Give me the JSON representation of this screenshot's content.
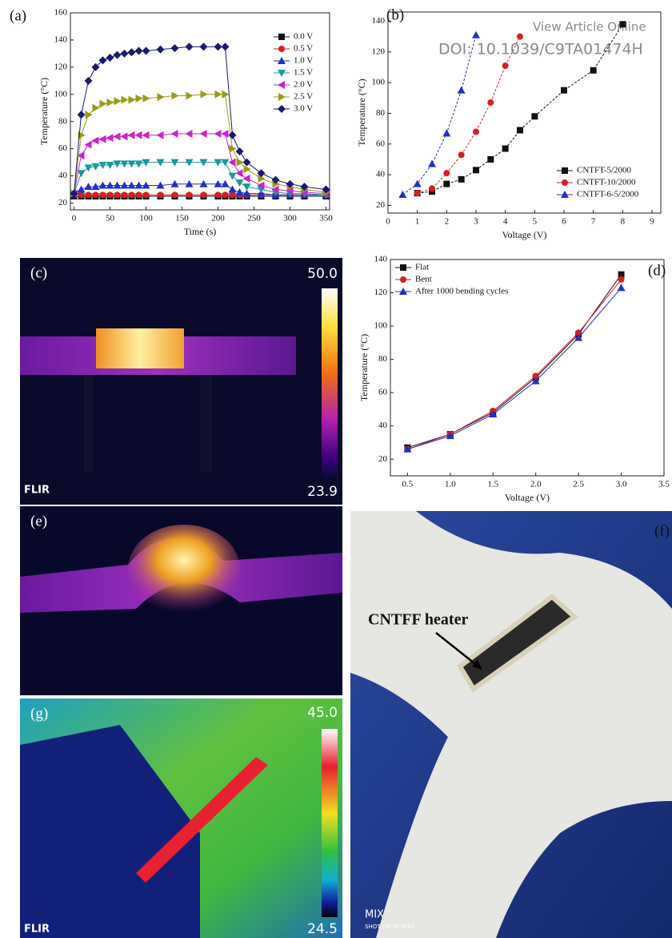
{
  "header": {
    "link": "View Article Online",
    "doi": "DOI: 10.1039/C9TA01474H"
  },
  "chart_data": [
    {
      "type": "line",
      "label": "(a)",
      "x_label": "Time (s)",
      "y_label": "Temperature (°C)",
      "x": [
        0,
        10,
        20,
        30,
        40,
        50,
        60,
        70,
        80,
        90,
        100,
        120,
        140,
        160,
        180,
        200,
        210,
        220,
        230,
        240,
        260,
        280,
        300,
        320,
        350
      ],
      "xlim": [
        -5,
        355
      ],
      "xticks": [
        0,
        50,
        100,
        150,
        200,
        250,
        300,
        350
      ],
      "ylim": [
        15,
        160
      ],
      "yticks": [
        20,
        40,
        60,
        80,
        100,
        120,
        140,
        160
      ],
      "legend": "upper right",
      "series": [
        {
          "name": "0.0 V",
          "color": "#111111",
          "marker": "square",
          "values": [
            25,
            25,
            25,
            25,
            25,
            25,
            25,
            25,
            25,
            25,
            25,
            25,
            25,
            25,
            25,
            25,
            25,
            25,
            25,
            25,
            25,
            25,
            25,
            25,
            25
          ]
        },
        {
          "name": "0.5 V",
          "color": "#d62020",
          "marker": "circle",
          "values": [
            27,
            26,
            26,
            26,
            26,
            26,
            26,
            26,
            26,
            26,
            26,
            26,
            26,
            26,
            26,
            26,
            26,
            26,
            26,
            26,
            26,
            26,
            26,
            26,
            26
          ]
        },
        {
          "name": "1.0 V",
          "color": "#2030c8",
          "marker": "triangle",
          "values": [
            27,
            30,
            32,
            32,
            33,
            33,
            33,
            33,
            33,
            33,
            33,
            33,
            34,
            34,
            34,
            34,
            34,
            30,
            28,
            27,
            27,
            26,
            26,
            26,
            26
          ]
        },
        {
          "name": "1.5 V",
          "color": "#1a9a9a",
          "marker": "triangle-down",
          "values": [
            27,
            42,
            46,
            47,
            48,
            48,
            49,
            49,
            49,
            49,
            50,
            50,
            50,
            50,
            50,
            50,
            50,
            40,
            35,
            32,
            30,
            28,
            27,
            27,
            26
          ]
        },
        {
          "name": "2.0 V",
          "color": "#d020d0",
          "marker": "triangle-left",
          "values": [
            27,
            55,
            63,
            66,
            67,
            68,
            69,
            69,
            70,
            70,
            70,
            70,
            71,
            71,
            71,
            71,
            71,
            50,
            42,
            38,
            33,
            30,
            29,
            28,
            27
          ]
        },
        {
          "name": "2.5 V",
          "color": "#9a9a18",
          "marker": "triangle-right",
          "values": [
            27,
            70,
            85,
            90,
            93,
            94,
            95,
            96,
            96,
            97,
            97,
            98,
            99,
            99,
            100,
            100,
            100,
            60,
            50,
            45,
            38,
            34,
            32,
            30,
            28
          ]
        },
        {
          "name": "3.0 V",
          "color": "#1a1a70",
          "marker": "diamond",
          "values": [
            27,
            85,
            110,
            120,
            125,
            127,
            129,
            130,
            131,
            132,
            132,
            133,
            134,
            135,
            135,
            135,
            135,
            70,
            58,
            50,
            42,
            37,
            34,
            32,
            30
          ]
        }
      ]
    },
    {
      "type": "line",
      "label": "(b)",
      "x_label": "Voltage (V)",
      "y_label": "Temperature (°C)",
      "xlim": [
        0,
        9.3
      ],
      "xticks": [
        0,
        1,
        2,
        3,
        4,
        5,
        6,
        7,
        8,
        9
      ],
      "ylim": [
        15,
        146
      ],
      "yticks": [
        20,
        40,
        60,
        80,
        100,
        120,
        140
      ],
      "legend": "lower right",
      "series": [
        {
          "name": "CNTFT-5/2000",
          "color": "#111111",
          "marker": "square",
          "dash": true,
          "x": [
            1,
            1.5,
            2,
            2.5,
            3,
            3.5,
            4,
            4.5,
            5,
            6,
            7,
            8
          ],
          "values": [
            28,
            29,
            34,
            37,
            43,
            50,
            57,
            69,
            78,
            95,
            108,
            138
          ]
        },
        {
          "name": "CNTFT-10/2000",
          "color": "#d62020",
          "marker": "circle",
          "dash": true,
          "x": [
            1,
            1.5,
            2,
            2.5,
            3,
            3.5,
            4,
            4.5
          ],
          "values": [
            28,
            31,
            41,
            53,
            68,
            87,
            111,
            130
          ]
        },
        {
          "name": "CNTFT-6-5/2000",
          "color": "#2030c8",
          "marker": "triangle",
          "dash": true,
          "x": [
            0.5,
            1,
            1.5,
            2,
            2.5,
            3
          ],
          "values": [
            27,
            34,
            47,
            67,
            95,
            131
          ]
        }
      ]
    },
    {
      "type": "line",
      "label": "(d)",
      "x_label": "Voltage (V)",
      "y_label": "Temperature (°C)",
      "x": [
        0.5,
        1,
        1.5,
        2,
        2.5,
        3
      ],
      "xlim": [
        0.3,
        3.5
      ],
      "xticks": [
        {
          "value": 0.5,
          "label": "0.5"
        },
        {
          "value": 1,
          "label": "1.0"
        },
        {
          "value": 1.5,
          "label": "1.5"
        },
        {
          "value": 2,
          "label": "2.0"
        },
        {
          "value": 2.5,
          "label": "2.5"
        },
        {
          "value": 3,
          "label": "3.0"
        },
        {
          "value": 3.5,
          "label": "3.5"
        }
      ],
      "ylim": [
        10,
        140
      ],
      "yticks": [
        20,
        40,
        60,
        80,
        100,
        120,
        140
      ],
      "legend": "upper left",
      "series": [
        {
          "name": "Flat",
          "color": "#111111",
          "marker": "square",
          "values": [
            27,
            35,
            48,
            69,
            95,
            131
          ]
        },
        {
          "name": "Bent",
          "color": "#d62020",
          "marker": "circle",
          "values": [
            26,
            35,
            49,
            70,
            96,
            128
          ]
        },
        {
          "name": "After 1000 bending cycles",
          "color": "#2030c8",
          "marker": "triangle",
          "values": [
            26,
            34,
            47,
            67,
            93,
            123
          ]
        }
      ]
    }
  ],
  "images": {
    "c": {
      "label": "(c)",
      "max": "50.0",
      "min": "23.9",
      "logo": "FLIR"
    },
    "e": {
      "label": "(e)"
    },
    "f": {
      "label": "(f)",
      "annotation": "CNTFF heater",
      "brand": "MIX",
      "caption": "SHOT ON MI MIX2"
    },
    "g": {
      "label": "(g)",
      "max": "45.0",
      "min": "24.5",
      "logo": "FLIR"
    }
  }
}
